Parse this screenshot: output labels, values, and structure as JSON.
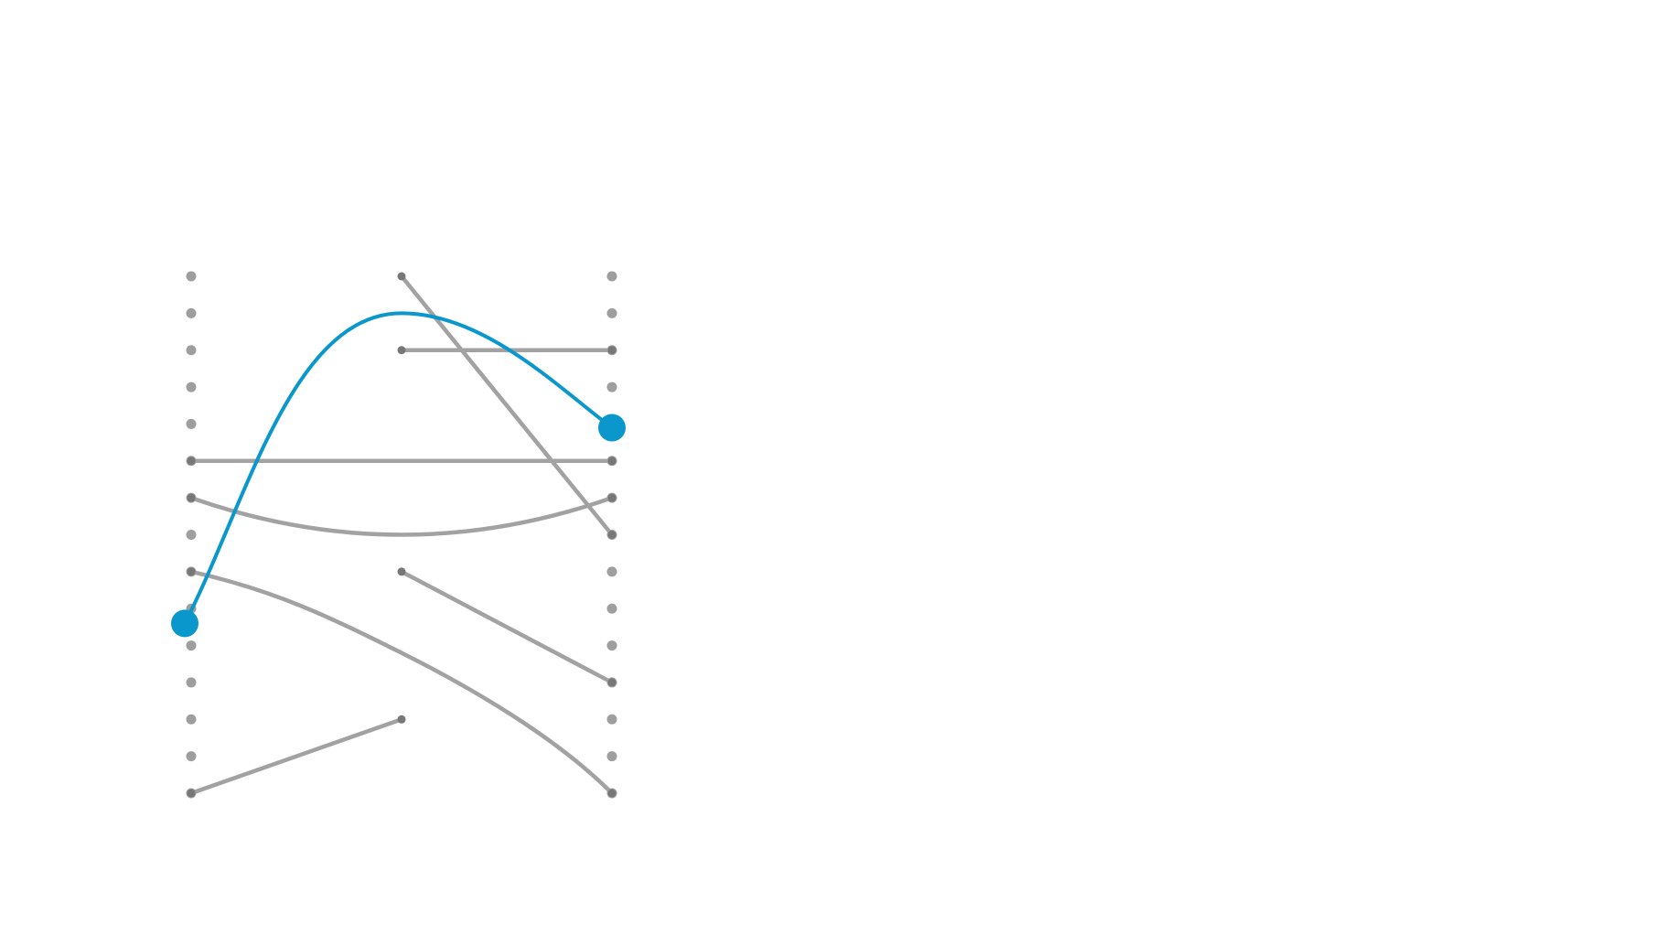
{
  "colors": {
    "background": "#ffffff",
    "dot": "#9e9e9e",
    "link": "#a2a2a2",
    "endpoint": "#777777",
    "highlight": "#0a97cc"
  },
  "chart_data": {
    "type": "slope-network",
    "columns": [
      {
        "name": "left",
        "slots": 15
      },
      {
        "name": "middle",
        "slots": 14
      },
      {
        "name": "right",
        "slots": 15
      }
    ],
    "slot_range": [
      0,
      14
    ],
    "left_dots": [
      0,
      1,
      2,
      3,
      4,
      5,
      6,
      7,
      8,
      9,
      10,
      11,
      12,
      13,
      14
    ],
    "right_dots": [
      0,
      1,
      2,
      3,
      4,
      5,
      6,
      7,
      8,
      9,
      10,
      11,
      12,
      13,
      14
    ],
    "links": [
      {
        "from": "left",
        "from_slot": 5,
        "to": "right",
        "to_slot": 5,
        "curve": "straight"
      },
      {
        "from": "left",
        "from_slot": 6,
        "to": "right",
        "to_slot": 6,
        "curve": "sag",
        "via_slot": 7
      },
      {
        "from": "left",
        "from_slot": 8,
        "to": "right",
        "to_slot": 14,
        "curve": "smooth",
        "via_slot": 10.2
      },
      {
        "from": "left",
        "from_slot": 14,
        "to": "middle",
        "to_slot": 12,
        "curve": "straight"
      },
      {
        "from": "middle",
        "from_slot": 0,
        "to": "right",
        "to_slot": 7,
        "curve": "straight"
      },
      {
        "from": "middle",
        "from_slot": 2,
        "to": "right",
        "to_slot": 2,
        "curve": "straight"
      },
      {
        "from": "middle",
        "from_slot": 8,
        "to": "right",
        "to_slot": 11,
        "curve": "straight"
      }
    ],
    "highlight": {
      "from": "left",
      "from_slot": 9.4,
      "via": "middle",
      "via_slot": 1,
      "to": "right",
      "to_slot": 4.1
    }
  }
}
